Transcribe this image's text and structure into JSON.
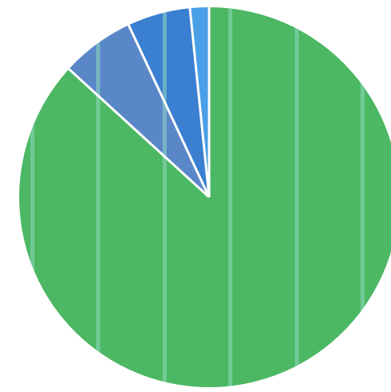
{
  "chart_data": {
    "type": "pie",
    "start": "12 o'clock",
    "direction": "clockwise",
    "slices": [
      {
        "value": 86.0,
        "color": "#4cb864"
      },
      {
        "value": 6.2,
        "color": "#5a87c8"
      },
      {
        "value": 5.3,
        "color": "#3a7fd0"
      },
      {
        "value": 1.6,
        "color": "#4aa0e6"
      }
    ],
    "slice_border_color": "#ffffff",
    "stripe_color": "#8fd8c0",
    "title": "",
    "legend": "none"
  }
}
